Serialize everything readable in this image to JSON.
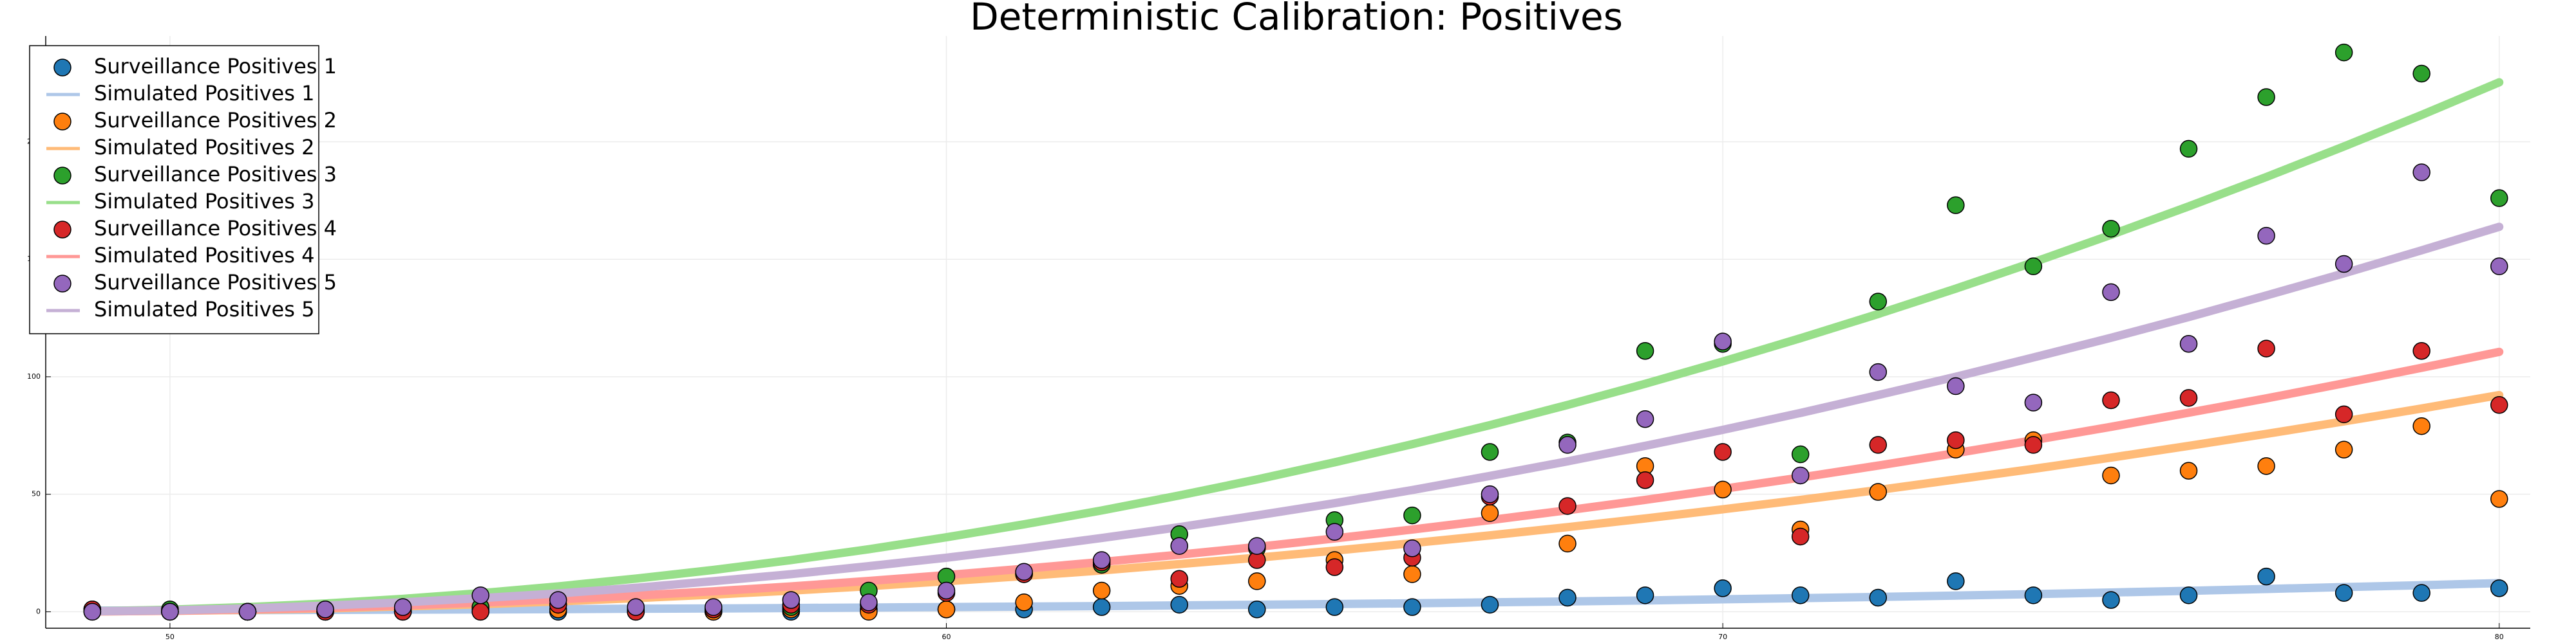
{
  "chart_data": {
    "type": "scatter-line",
    "title": "Deterministic Calibration: Positives",
    "x": [
      49,
      50,
      51,
      52,
      53,
      54,
      55,
      56,
      57,
      58,
      59,
      60,
      61,
      62,
      63,
      64,
      65,
      66,
      67,
      68,
      69,
      70,
      71,
      72,
      73,
      74,
      75,
      76,
      77,
      78,
      79,
      80
    ],
    "xlim": [
      48.4,
      80.4
    ],
    "xticks": [
      50,
      60,
      70,
      80
    ],
    "ylim": [
      -7,
      245
    ],
    "yticks": [
      0,
      50,
      100,
      150,
      200
    ],
    "grid": true,
    "legend": "top-left",
    "series": [
      {
        "name": "Surveillance Positives 1",
        "type": "scatter",
        "color": "#1f77b4",
        "values": [
          0,
          0,
          0,
          0,
          0,
          0,
          0,
          0,
          0,
          0,
          1,
          1,
          1,
          2,
          3,
          1,
          2,
          2,
          3,
          6,
          7,
          10,
          7,
          6,
          13,
          7,
          5,
          7,
          15,
          8,
          8,
          10
        ]
      },
      {
        "name": "Simulated Positives 1",
        "type": "line",
        "color": "#aec7e8",
        "values": [
          0.5,
          0.6,
          0.7,
          0.8,
          0.9,
          1.0,
          1.1,
          1.3,
          1.4,
          1.6,
          1.8,
          2.0,
          2.2,
          2.4,
          2.7,
          3.0,
          3.3,
          3.6,
          4.0,
          4.4,
          4.8,
          5.3,
          5.8,
          6.3,
          6.9,
          7.5,
          8.2,
          8.9,
          9.7,
          10.5,
          11.3,
          12.2
        ]
      },
      {
        "name": "Surveillance Positives 2",
        "type": "scatter",
        "color": "#ff7f0e",
        "values": [
          1,
          0,
          0,
          0,
          1,
          1,
          1,
          0,
          0,
          1,
          0,
          1,
          4,
          9,
          11,
          13,
          22,
          16,
          42,
          29,
          62,
          52,
          35,
          51,
          69,
          73,
          58,
          60,
          62,
          69,
          79,
          48
        ]
      },
      {
        "name": "Simulated Positives 2",
        "type": "line",
        "color": "#ffbb78",
        "values": [
          0.1,
          0.4,
          0.8,
          1.4,
          2.3,
          3.2,
          4.4,
          5.8,
          7.3,
          9,
          10.9,
          13,
          15.2,
          17.6,
          20.3,
          23,
          26,
          29.2,
          32.5,
          36,
          39.7,
          43.6,
          47.6,
          51.8,
          56.3,
          60.8,
          65.6,
          70.6,
          75.7,
          81,
          86.5,
          92.2
        ]
      },
      {
        "name": "Surveillance Positives 3",
        "type": "scatter",
        "color": "#2ca02c",
        "values": [
          1,
          1,
          0,
          1,
          0,
          2,
          3,
          1,
          1,
          2,
          9,
          15,
          16,
          20,
          33,
          27,
          39,
          41,
          68,
          72,
          111,
          114,
          67,
          132,
          173,
          147,
          163,
          197,
          219,
          238,
          229,
          176
        ]
      },
      {
        "name": "Simulated Positives 3",
        "type": "line",
        "color": "#98df8a",
        "values": [
          0.2,
          0.9,
          2,
          3.5,
          5.5,
          7.9,
          10.8,
          14.1,
          17.8,
          22,
          26.6,
          31.7,
          37.2,
          43.1,
          49.5,
          56.3,
          63.6,
          71.3,
          79.4,
          88,
          97,
          106.5,
          116.4,
          126.7,
          137.5,
          148.7,
          160.4,
          172.5,
          185,
          198,
          211.4,
          225.3
        ]
      },
      {
        "name": "Surveillance Positives 4",
        "type": "scatter",
        "color": "#d62728",
        "values": [
          1,
          0,
          0,
          0,
          0,
          0,
          3,
          0,
          1,
          3,
          3,
          8,
          16,
          21,
          14,
          22,
          19,
          23,
          49,
          45,
          56,
          68,
          32,
          71,
          73,
          71,
          90,
          91,
          112,
          84,
          111,
          88
        ]
      },
      {
        "name": "Simulated Positives 4",
        "type": "line",
        "color": "#ff9896",
        "values": [
          0.1,
          0.4,
          1,
          1.7,
          2.7,
          3.9,
          5.3,
          6.9,
          8.7,
          10.8,
          13.1,
          15.6,
          18.3,
          21.2,
          24.3,
          27.6,
          31.2,
          35,
          39,
          43.2,
          47.6,
          52.3,
          57.1,
          62.2,
          67.5,
          73,
          78.7,
          84.7,
          90.8,
          97.2,
          103.8,
          110.6
        ]
      },
      {
        "name": "Surveillance Positives 5",
        "type": "scatter",
        "color": "#9467bd",
        "values": [
          0,
          0,
          0,
          1,
          2,
          7,
          5,
          2,
          2,
          5,
          4,
          9,
          17,
          22,
          28,
          28,
          34,
          27,
          50,
          71,
          82,
          115,
          58,
          102,
          96,
          89,
          136,
          114,
          160,
          148,
          187,
          147
        ]
      },
      {
        "name": "Simulated Positives 5",
        "type": "line",
        "color": "#c5b0d5",
        "values": [
          0.2,
          0.6,
          1.4,
          2.6,
          4,
          5.8,
          7.8,
          10.2,
          13,
          16,
          19.4,
          23,
          27,
          31.4,
          36,
          41,
          46.2,
          51.8,
          57.8,
          64,
          70.6,
          77.4,
          84.6,
          92.2,
          100,
          108.2,
          116.6,
          125.4,
          134.6,
          144,
          153.8,
          163.8
        ]
      }
    ]
  }
}
